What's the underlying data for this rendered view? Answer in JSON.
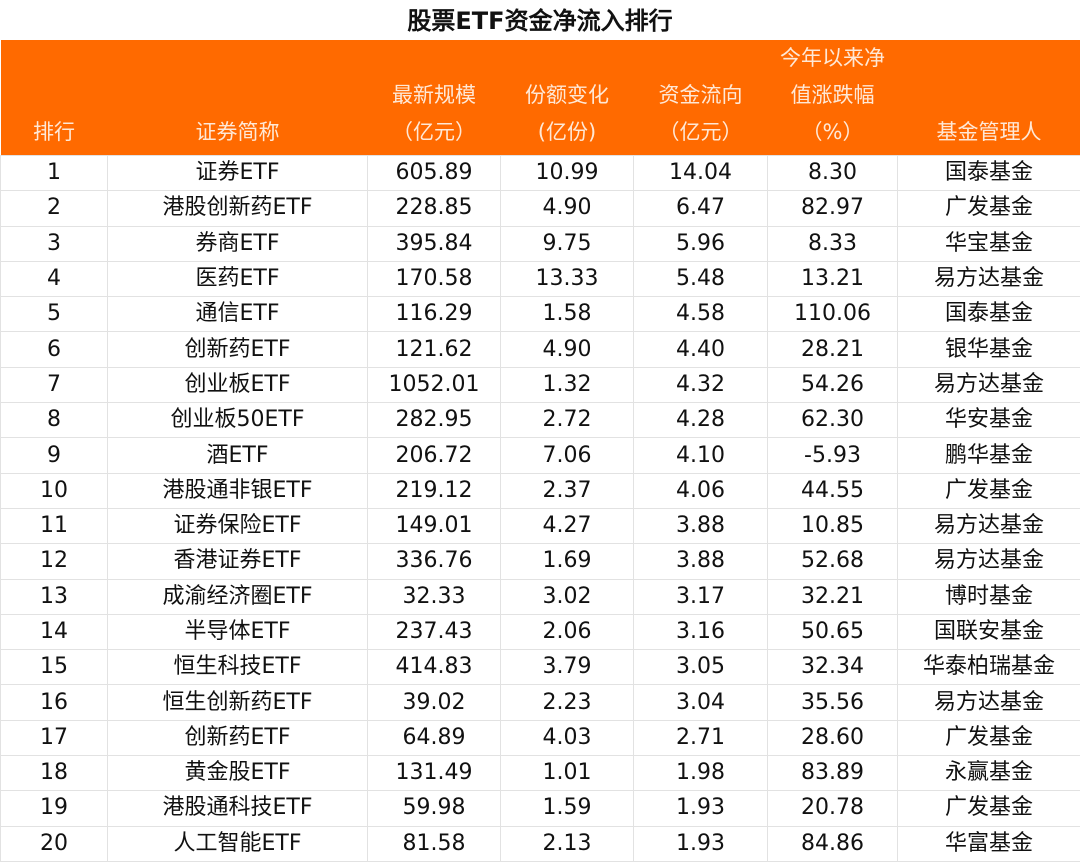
{
  "title": "股票ETF资金净流入排行",
  "header_color": "#FF6A00",
  "columns": [
    "排行",
    "证券简称",
    "最新规模\n（亿元）",
    "份额变化\n(亿份)",
    "资金流向\n（亿元）",
    "今年以来净\n值涨跌幅\n（%）",
    "基金管理人"
  ],
  "rows": [
    [
      "1",
      "证券ETF",
      "605.89",
      "10.99",
      "14.04",
      "8.30",
      "国泰基金"
    ],
    [
      "2",
      "港股创新药ETF",
      "228.85",
      "4.90",
      "6.47",
      "82.97",
      "广发基金"
    ],
    [
      "3",
      "券商ETF",
      "395.84",
      "9.75",
      "5.96",
      "8.33",
      "华宝基金"
    ],
    [
      "4",
      "医药ETF",
      "170.58",
      "13.33",
      "5.48",
      "13.21",
      "易方达基金"
    ],
    [
      "5",
      "通信ETF",
      "116.29",
      "1.58",
      "4.58",
      "110.06",
      "国泰基金"
    ],
    [
      "6",
      "创新药ETF",
      "121.62",
      "4.90",
      "4.40",
      "28.21",
      "银华基金"
    ],
    [
      "7",
      "创业板ETF",
      "1052.01",
      "1.32",
      "4.32",
      "54.26",
      "易方达基金"
    ],
    [
      "8",
      "创业板50ETF",
      "282.95",
      "2.72",
      "4.28",
      "62.30",
      "华安基金"
    ],
    [
      "9",
      "酒ETF",
      "206.72",
      "7.06",
      "4.10",
      "-5.93",
      "鹏华基金"
    ],
    [
      "10",
      "港股通非银ETF",
      "219.12",
      "2.37",
      "4.06",
      "44.55",
      "广发基金"
    ],
    [
      "11",
      "证券保险ETF",
      "149.01",
      "4.27",
      "3.88",
      "10.85",
      "易方达基金"
    ],
    [
      "12",
      "香港证券ETF",
      "336.76",
      "1.69",
      "3.88",
      "52.68",
      "易方达基金"
    ],
    [
      "13",
      "成渝经济圈ETF",
      "32.33",
      "3.02",
      "3.17",
      "32.21",
      "博时基金"
    ],
    [
      "14",
      "半导体ETF",
      "237.43",
      "2.06",
      "3.16",
      "50.65",
      "国联安基金"
    ],
    [
      "15",
      "恒生科技ETF",
      "414.83",
      "3.79",
      "3.05",
      "32.34",
      "华泰柏瑞基金"
    ],
    [
      "16",
      "恒生创新药ETF",
      "39.02",
      "2.23",
      "3.04",
      "35.56",
      "易方达基金"
    ],
    [
      "17",
      "创新药ETF",
      "64.89",
      "4.03",
      "2.71",
      "28.60",
      "广发基金"
    ],
    [
      "18",
      "黄金股ETF",
      "131.49",
      "1.01",
      "1.98",
      "83.89",
      "永赢基金"
    ],
    [
      "19",
      "港股通科技ETF",
      "59.98",
      "1.59",
      "1.93",
      "20.78",
      "广发基金"
    ],
    [
      "20",
      "人工智能ETF",
      "81.58",
      "2.13",
      "1.93",
      "84.86",
      "华富基金"
    ]
  ]
}
